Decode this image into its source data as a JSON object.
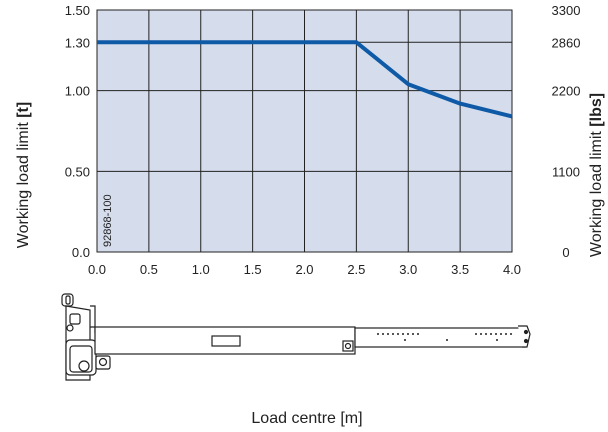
{
  "chart_data": {
    "type": "line",
    "xlabel": "Load centre [m]",
    "ylabel_left_prefix": "Working load limit ",
    "ylabel_left_unit": "[t]",
    "ylabel_right_prefix": "Working load limit ",
    "ylabel_right_unit": "[lbs]",
    "xlim": [
      0,
      4
    ],
    "ylim": [
      0,
      1.5
    ],
    "x_ticks": [
      "0.0",
      "0.5",
      "1.0",
      "1.5",
      "2.0",
      "2.5",
      "3.0",
      "3.5",
      "4.0"
    ],
    "y_ticks_left": [
      {
        "value": 0.0,
        "label": "0.0"
      },
      {
        "value": 0.5,
        "label": "0.50"
      },
      {
        "value": 1.0,
        "label": "1.00"
      },
      {
        "value": 1.3,
        "label": "1.30"
      },
      {
        "value": 1.5,
        "label": "1.50"
      }
    ],
    "y_ticks_right": [
      {
        "value": 0.0,
        "label": "0"
      },
      {
        "value": 0.5,
        "label": "1100"
      },
      {
        "value": 1.0,
        "label": "2200"
      },
      {
        "value": 1.3,
        "label": "2860"
      },
      {
        "value": 1.5,
        "label": "3300"
      }
    ],
    "series": [
      {
        "x": [
          0.0,
          0.5,
          1.0,
          1.5,
          2.0,
          2.5,
          3.0,
          3.5,
          4.0
        ],
        "y": [
          1.3,
          1.3,
          1.3,
          1.3,
          1.3,
          1.3,
          1.04,
          0.92,
          0.84
        ]
      }
    ],
    "grid": true,
    "image_code": "92868-100",
    "colors": {
      "plot_bg": "#d5dcec",
      "line": "#0f5aa6",
      "grid": "#222222"
    }
  }
}
